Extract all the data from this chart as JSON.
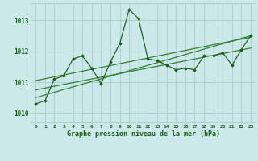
{
  "title": "Graphe pression niveau de la mer (hPa)",
  "xlabel_ticks": [
    0,
    1,
    2,
    3,
    4,
    5,
    6,
    7,
    8,
    9,
    10,
    11,
    12,
    13,
    14,
    15,
    16,
    17,
    18,
    19,
    20,
    21,
    22,
    23
  ],
  "ylim": [
    1009.7,
    1013.55
  ],
  "xlim": [
    -0.5,
    23.5
  ],
  "yticks": [
    1010,
    1011,
    1012,
    1013
  ],
  "bg_color": "#cce9e9",
  "grid_color": "#aacccc",
  "line_color": "#1a5c1a",
  "marker_color": "#1a5c1a",
  "trend_color": "#2d7a2d",
  "main_line_x": [
    0,
    1,
    2,
    3,
    4,
    5,
    6,
    7,
    8,
    9,
    10,
    11,
    12,
    13,
    14,
    15,
    16,
    17,
    18,
    19,
    20,
    21,
    22,
    23
  ],
  "main_line_y": [
    1010.3,
    1010.4,
    1011.1,
    1011.2,
    1011.75,
    1011.85,
    1011.45,
    1010.95,
    1011.65,
    1012.25,
    1013.35,
    1013.05,
    1011.75,
    1011.7,
    1011.55,
    1011.4,
    1011.45,
    1011.4,
    1011.85,
    1011.85,
    1011.95,
    1011.55,
    1012.05,
    1012.5
  ],
  "trend1_x": [
    0,
    23
  ],
  "trend1_y": [
    1010.5,
    1012.5
  ],
  "trend2_x": [
    0,
    23
  ],
  "trend2_y": [
    1010.75,
    1012.1
  ],
  "trend3_x": [
    0,
    23
  ],
  "trend3_y": [
    1011.05,
    1012.45
  ]
}
